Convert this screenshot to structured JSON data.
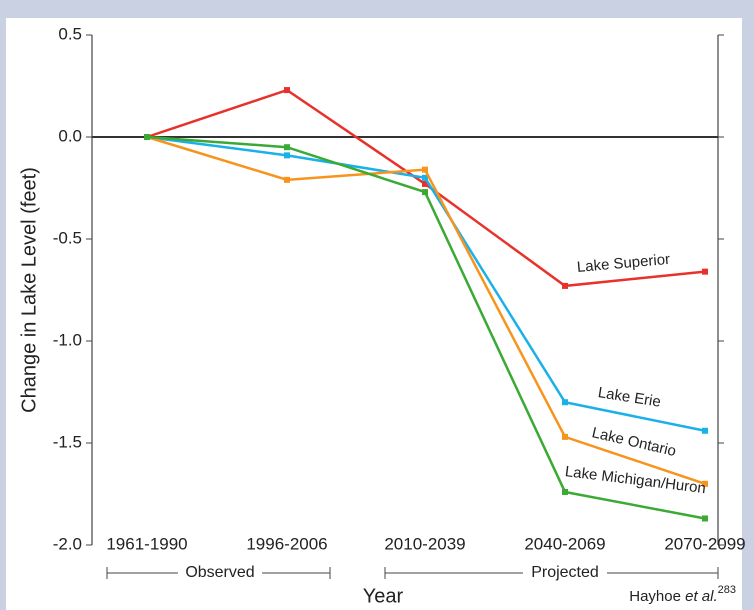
{
  "chart_data": {
    "type": "line",
    "y_label": "Change in Lake Level (feet)",
    "x_label": "Year",
    "categories": [
      "1961-1990",
      "1996-2006",
      "2010-2039",
      "2040-2069",
      "2070-2099"
    ],
    "series": [
      {
        "name": "Lake Superior",
        "color": "#e8312a",
        "values": [
          0,
          0.23,
          -0.23,
          -0.73,
          -0.66
        ]
      },
      {
        "name": "Lake Erie",
        "color": "#1ab0e8",
        "values": [
          0,
          -0.09,
          -0.2,
          -1.3,
          -1.44
        ]
      },
      {
        "name": "Lake Ontario",
        "color": "#f7941d",
        "values": [
          0,
          -0.21,
          -0.16,
          -1.47,
          -1.7
        ]
      },
      {
        "name": "Lake Michigan/Huron",
        "color": "#3aaa35",
        "values": [
          0,
          -0.05,
          -0.27,
          -1.74,
          -1.87
        ]
      }
    ],
    "ylim": [
      -2.0,
      0.5
    ],
    "yticks": [
      {
        "value": 0.5,
        "label": "0.5"
      },
      {
        "value": 0,
        "label": "0.0"
      },
      {
        "value": -0.5,
        "label": "-0.5"
      },
      {
        "value": -1,
        "label": "-1.0"
      },
      {
        "value": -1.5,
        "label": "-1.5"
      },
      {
        "value": -2,
        "label": "-2.0"
      }
    ],
    "zero_line": true,
    "periods": [
      "Observed",
      "Projected"
    ],
    "credit": {
      "author": "Hayhoe",
      "etal": "et al.",
      "ref": "283"
    }
  }
}
